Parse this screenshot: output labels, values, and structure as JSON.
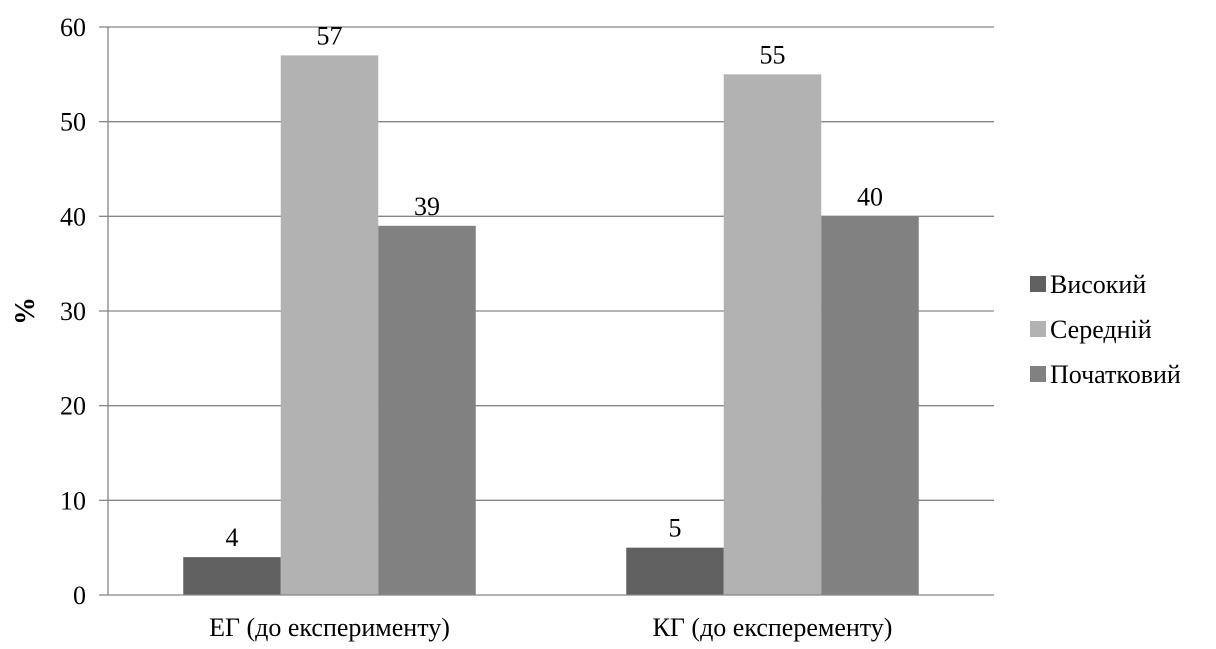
{
  "chart_data": {
    "type": "bar",
    "categories": [
      "ЕГ (до експерименту)",
      "КГ (до експеременту)"
    ],
    "series": [
      {
        "name": "Високий",
        "values": [
          4,
          5
        ],
        "color": "#606060"
      },
      {
        "name": "Середній",
        "values": [
          57,
          55
        ],
        "color": "#b2b2b2"
      },
      {
        "name": "Початковий",
        "values": [
          39,
          40
        ],
        "color": "#818181"
      }
    ],
    "ylabel": "%",
    "ylim": [
      0,
      60
    ],
    "yticks": [
      0,
      10,
      20,
      30,
      40,
      50,
      60
    ],
    "grid": true,
    "legend_position": "right"
  }
}
